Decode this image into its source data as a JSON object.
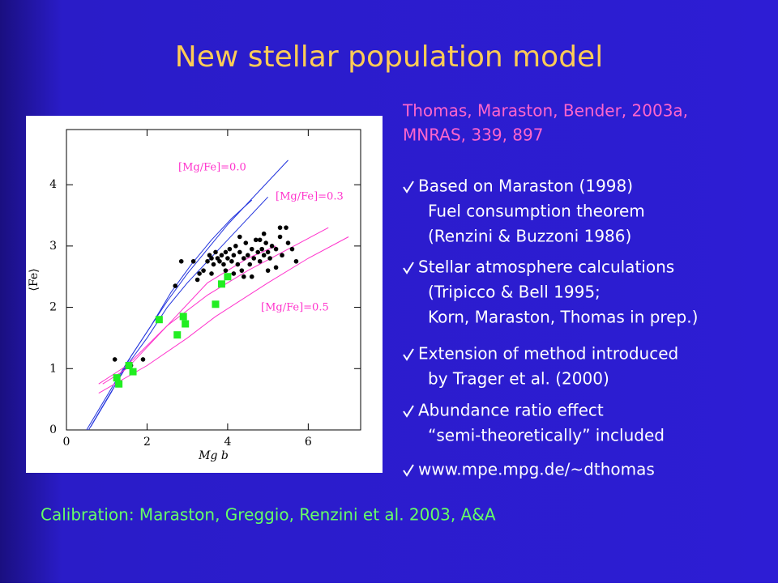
{
  "title": "New stellar population model",
  "reference": [
    "Thomas, Maraston, Bender, 2003a,",
    "MNRAS, 339, 897"
  ],
  "bullets": [
    {
      "lines": [
        "Based on Maraston (1998)",
        "Fuel consumption theorem",
        "(Renzini & Buzzoni 1986)"
      ]
    },
    {
      "lines": [
        "Stellar atmosphere calculations",
        "(Tripicco & Bell 1995;",
        "Korn, Maraston, Thomas in prep.)"
      ]
    },
    {
      "lines": [
        "Extension of method introduced",
        "by Trager et al. (2000)"
      ]
    },
    {
      "lines": [
        "Abundance ratio effect",
        "“semi-theoretically” included"
      ]
    },
    {
      "lines": [
        "www.mpe.mpg.de/~dthomas"
      ]
    }
  ],
  "footer": "Calibration: Maraston, Greggio, Renzini et al. 2003, A&A",
  "chart_data": {
    "type": "scatter",
    "xlabel": "Mg b",
    "ylabel": "⟨Fe⟩",
    "xlim": [
      0,
      7.3
    ],
    "ylim": [
      0,
      4.9
    ],
    "xticks": [
      0,
      2,
      4,
      6
    ],
    "yticks": [
      0,
      1,
      2,
      3,
      4
    ],
    "annotations": [
      "[Mg/Fe]=0.0",
      "[Mg/Fe]=0.3",
      "[Mg/Fe]=0.5"
    ],
    "series": [
      {
        "kind": "line",
        "color": "#2233dd",
        "x": [
          0.5,
          1.0,
          1.5,
          2.0,
          2.5,
          3.0,
          3.5,
          4.0,
          4.5,
          5.0,
          5.5
        ],
        "values": [
          0,
          0.55,
          1.1,
          1.6,
          2.1,
          2.55,
          2.95,
          3.35,
          3.7,
          4.05,
          4.4
        ]
      },
      {
        "kind": "line",
        "color": "#2233dd",
        "x": [
          0.55,
          1.0,
          1.5,
          2.0,
          2.5,
          3.0,
          3.5,
          4.0,
          4.5,
          5.0
        ],
        "values": [
          0,
          0.5,
          1.05,
          1.5,
          2.0,
          2.4,
          2.75,
          3.1,
          3.45,
          3.8
        ]
      },
      {
        "kind": "line",
        "color": "#2233dd",
        "x": [
          0.6,
          1.1,
          1.6,
          2.1,
          2.6,
          3.1,
          3.6,
          4.1,
          4.6
        ],
        "values": [
          0.05,
          0.6,
          1.2,
          1.7,
          2.25,
          2.7,
          3.1,
          3.45,
          3.75
        ]
      },
      {
        "kind": "line",
        "color": "#ff33cc",
        "x": [
          0.9,
          1.5,
          2.5,
          3.5,
          4.5,
          5.2
        ],
        "values": [
          0.75,
          1.0,
          1.7,
          2.4,
          2.8,
          3.0
        ]
      },
      {
        "kind": "line",
        "color": "#ff33cc",
        "x": [
          0.8,
          1.5,
          2.5,
          3.5,
          4.5,
          5.5,
          6.5
        ],
        "values": [
          0.75,
          1.05,
          1.7,
          2.2,
          2.6,
          2.95,
          3.3
        ]
      },
      {
        "kind": "line",
        "color": "#ff33cc",
        "x": [
          0.8,
          2,
          3,
          3.7,
          5,
          6,
          7
        ],
        "values": [
          0.6,
          1.05,
          1.5,
          1.85,
          2.4,
          2.8,
          3.15
        ]
      },
      {
        "kind": "dot",
        "color": "#000000",
        "x": [
          1.2,
          1.6,
          1.9,
          2.85,
          2.7,
          3.15,
          3.25,
          3.3,
          3.4,
          3.5,
          3.55,
          3.6,
          3.65,
          3.7,
          3.75,
          3.8,
          3.85,
          3.9,
          3.95,
          4.0,
          4.05,
          4.1,
          4.15,
          4.2,
          4.25,
          4.3,
          4.35,
          4.4,
          4.45,
          4.5,
          4.55,
          4.6,
          4.65,
          4.7,
          4.75,
          4.8,
          4.85,
          4.9,
          4.95,
          5.0,
          5.05,
          5.1,
          5.2,
          5.3,
          5.35,
          5.45,
          5.5,
          5.6,
          5.7,
          4.3,
          4.9,
          5.2,
          3.95,
          4.15,
          4.6,
          5.3,
          3.6,
          4.8,
          4.4,
          5.0
        ],
        "values": [
          1.15,
          1.05,
          1.15,
          2.75,
          2.35,
          2.75,
          2.45,
          2.55,
          2.6,
          2.75,
          2.85,
          2.8,
          2.7,
          2.9,
          2.8,
          2.75,
          2.85,
          2.7,
          2.9,
          2.8,
          2.95,
          2.75,
          2.85,
          3.0,
          2.7,
          2.9,
          2.6,
          2.8,
          3.05,
          2.85,
          2.7,
          2.95,
          2.8,
          3.1,
          2.9,
          2.75,
          2.95,
          2.85,
          3.05,
          2.9,
          2.8,
          3.0,
          2.95,
          3.3,
          2.85,
          3.3,
          3.05,
          2.95,
          2.75,
          3.15,
          3.2,
          2.65,
          2.6,
          2.55,
          2.5,
          3.15,
          2.55,
          3.1,
          2.5,
          2.6
        ]
      },
      {
        "kind": "square",
        "color": "#22ee22",
        "x": [
          1.25,
          1.3,
          1.55,
          1.65,
          2.3,
          2.75,
          2.9,
          2.95,
          3.7,
          3.85,
          4.0
        ],
        "values": [
          0.85,
          0.75,
          1.05,
          0.95,
          1.8,
          1.55,
          1.85,
          1.73,
          2.05,
          2.38,
          2.5
        ]
      }
    ]
  }
}
